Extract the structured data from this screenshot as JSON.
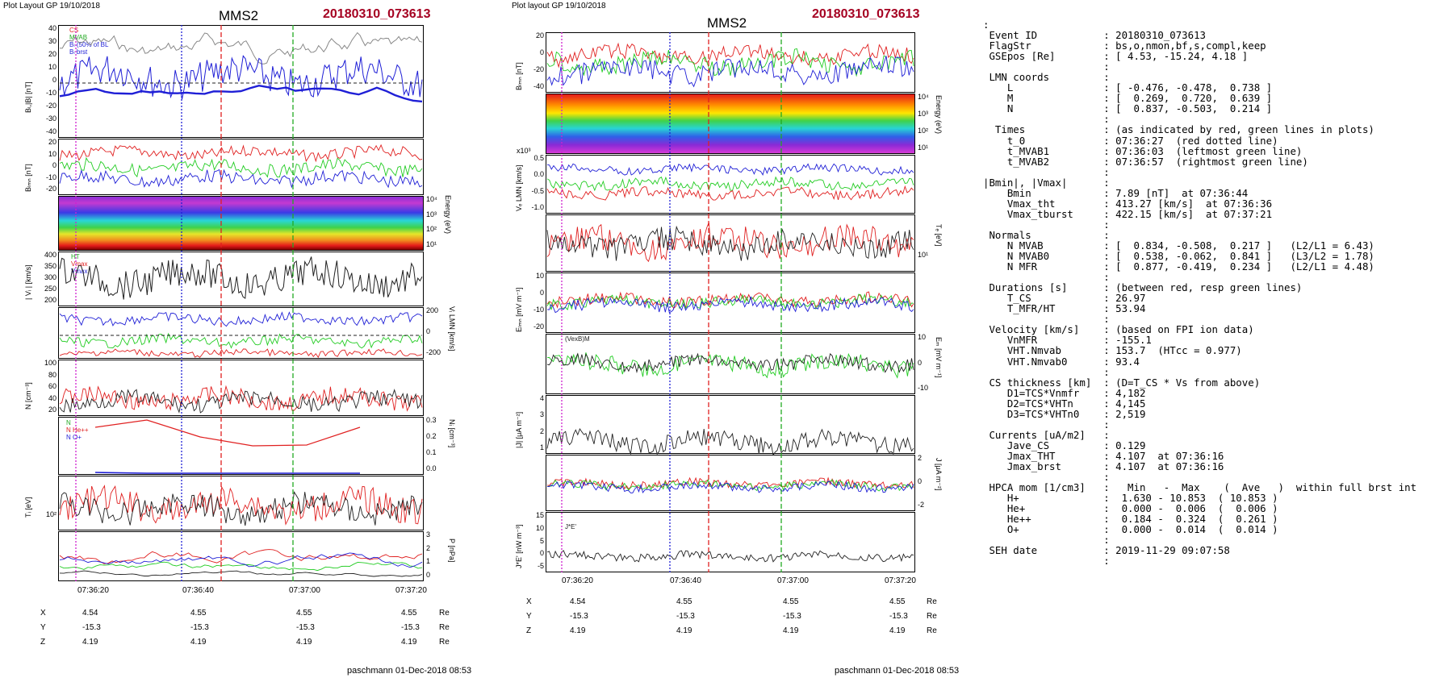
{
  "left": {
    "header": "Plot Layout GP 19/10/2018",
    "spacecraft": "MMS2",
    "event": "20180310_073613",
    "ylabels": [
      "Bₗ,|B| [nT]",
      "Bₗₘₙ [nT]",
      "Energy (eV)",
      "| Vᵢ | [km/s]",
      "Vᵢ LMN [km/s]",
      "N [cm⁻³]",
      "Nᵢ [cm⁻³]",
      "Tᵢ [eV]",
      "P [nPa]"
    ],
    "ticks": {
      "p1": [
        "40",
        "30",
        "20",
        "10",
        "0",
        "-10",
        "-20",
        "-30",
        "-40"
      ],
      "p2": [
        "20",
        "10",
        "0",
        "-10",
        "-20"
      ],
      "p3": [
        "10⁴",
        "10³",
        "10²",
        "10¹"
      ],
      "p4": [
        "400",
        "350",
        "300",
        "250",
        "200"
      ],
      "p5": [
        "200",
        "0",
        "-200"
      ],
      "p6": [
        "100",
        "80",
        "60",
        "40",
        "20"
      ],
      "p7": [
        "0.3",
        "0.2",
        "0.1",
        "0.0"
      ],
      "p8": [
        "10²"
      ],
      "p9": [
        "3",
        "2",
        "1",
        "0"
      ]
    },
    "legends": {
      "p1": [
        "CS",
        "MVAB",
        "Bₗ (50% of BL",
        "Bₗ brst"
      ],
      "p4": [
        "HT",
        "Vmax",
        "Vmax"
      ],
      "p7": [
        "N",
        "N He++",
        "N O+"
      ]
    },
    "xticks": [
      "07:36:20",
      "07:36:40",
      "07:37:00",
      "07:37:20"
    ],
    "xyz": [
      {
        "label": "X",
        "values": [
          "4.54",
          "4.55",
          "4.55",
          "4.55"
        ],
        "unit": "Re"
      },
      {
        "label": "Y",
        "values": [
          "-15.3",
          "-15.3",
          "-15.3",
          "-15.3"
        ],
        "unit": "Re"
      },
      {
        "label": "Z",
        "values": [
          "4.19",
          "4.19",
          "4.19",
          "4.19"
        ],
        "unit": "Re"
      }
    ],
    "footer": "paschmann 01-Dec-2018 08:53"
  },
  "middle": {
    "header": "Plot layout GP 19/10/2018",
    "spacecraft": "MMS2",
    "event": "20180310_073613",
    "ylabels": [
      "Bₗₘₙ [nT]",
      "Energy (eV)",
      "Vₑ LMN [km/s]",
      "Tₑ [eV]",
      "Eₗₘₙ [mV m⁻¹]",
      "Eₘ [mV m⁻¹]",
      "|J| [μA m⁻²]",
      "J [μA m⁻²]",
      "J*E' [nW m⁻³]"
    ],
    "ticks": {
      "p1": [
        "20",
        "0",
        "-20",
        "-40"
      ],
      "p2": [
        "10⁴",
        "10³",
        "10²",
        "10¹"
      ],
      "p3": [
        "0.5",
        "0.0",
        "-0.5",
        "-1.0"
      ],
      "p4": [
        "10¹"
      ],
      "p5": [
        "10",
        "0",
        "-10",
        "-20"
      ],
      "p6": [
        "10",
        "0",
        "-10"
      ],
      "p7": [
        "4",
        "3",
        "2",
        "1"
      ],
      "p8": [
        "2",
        "0",
        "-2"
      ],
      "p9": [
        "15",
        "10",
        "5",
        "0",
        "-5"
      ]
    },
    "legends": {
      "p6": [
        "(VexB)M"
      ],
      "p9": [
        "J*E'"
      ]
    },
    "scale_note": "x10³",
    "xticks": [
      "07:36:20",
      "07:36:40",
      "07:37:00",
      "07:37:20"
    ],
    "xyz": [
      {
        "label": "X",
        "values": [
          "4.54",
          "4.55",
          "4.55",
          "4.55"
        ],
        "unit": "Re"
      },
      {
        "label": "Y",
        "values": [
          "-15.3",
          "-15.3",
          "-15.3",
          "-15.3"
        ],
        "unit": "Re"
      },
      {
        "label": "Z",
        "values": [
          "4.19",
          "4.19",
          "4.19",
          "4.19"
        ],
        "unit": "Re"
      }
    ],
    "footer": "paschmann 01-Dec-2018 08:53"
  },
  "table_lines": [
    ":",
    " Event ID           : 20180310_073613",
    " FlagStr            : bs,o,nmon,bf,s,compl,keep",
    " GSEpos [Re]        : [ 4.53, -15.24, 4.18 ]",
    "                    :",
    " LMN coords         :",
    "    L               : [ -0.476, -0.478,  0.738 ]",
    "    M               : [  0.269,  0.720,  0.639 ]",
    "    N               : [  0.837, -0.503,  0.214 ]",
    "                    :",
    "  Times             : (as indicated by red, green lines in plots)",
    "    t_0             : 07:36:27  (red dotted line)",
    "    t_MVAB1         : 07:36:03  (leftmost green line)",
    "    t_MVAB2         : 07:36:57  (rightmost green line)",
    "                    :",
    "|Bmin|, |Vmax|      :",
    "    Bmin            : 7.89 [nT]  at 07:36:44",
    "    Vmax_tht        : 413.27 [km/s]  at 07:36:36",
    "    Vmax_tburst     : 422.15 [km/s]  at 07:37:21",
    "                    :",
    " Normals            :",
    "    N MVAB          : [  0.834, -0.508,  0.217 ]   (L2/L1 = 6.43)",
    "    N MVAB0         : [  0.538, -0.062,  0.841 ]   (L3/L2 = 1.78)",
    "    N MFR           : [  0.877, -0.419,  0.234 ]   (L2/L1 = 4.48)",
    "                    :",
    " Durations [s]      : (between red, resp green lines)",
    "    T_CS            : 26.97",
    "    T_MFR/HT        : 53.94",
    "                    :",
    " Velocity [km/s]    : (based on FPI ion data)",
    "    VnMFR           : -155.1",
    "    VHT.Nmvab       : 153.7  (HTcc = 0.977)",
    "    VHT.Nmvab0      : 93.4",
    "                    :",
    " CS thickness [km]  : (D=T_CS * Vs from above)",
    "    D1=TCS*Vnmfr    : 4,182",
    "    D2=TCS*VHTn     : 4,145",
    "    D3=TCS*VHTn0    : 2,519",
    "                    :",
    " Currents [uA/m2]   :",
    "    Jave_CS         : 0.129",
    "    Jmax_THT        : 4.107  at 07:36:16",
    "    Jmax_brst       : 4.107  at 07:36:16",
    "                    :",
    " HPCA mom [1/cm3]   :   Min   -  Max    (  Ave   )  within full brst int",
    "    H+              :  1.630 - 10.853  ( 10.853 )",
    "    He+             :  0.000 -  0.006  (  0.006 )",
    "    He++            :  0.184 -  0.324  (  0.261 )",
    "    O+              :  0.000 -  0.014  (  0.014 )",
    "                    :",
    " SEH date           : 2019-11-29 09:07:58",
    "                    :"
  ],
  "chart_data": [
    {
      "type": "line",
      "title": "MMS2 20180310_073613",
      "xlabel": "",
      "x_ticks": [
        "07:36:20",
        "07:36:40",
        "07:37:00",
        "07:37:20"
      ],
      "x_range": [
        "07:36:10",
        "07:37:20"
      ],
      "panels": [
        {
          "ylabel": "BL,|B| [nT]",
          "ylim": [
            -40,
            40
          ],
          "series": [
            {
              "name": "BL brst",
              "color": "#1f1fd6"
            },
            {
              "name": "CS",
              "color": "#777777"
            }
          ]
        },
        {
          "ylabel": "BLMN [nT]",
          "ylim": [
            -20,
            20
          ],
          "series": [
            {
              "color": "#e02020"
            },
            {
              "color": "#22cc22"
            },
            {
              "color": "#1f1fd6"
            }
          ]
        },
        {
          "ylabel": "Energy (eV)",
          "type": "heatmap",
          "ylim": [
            "10¹",
            "10⁴"
          ]
        },
        {
          "ylabel": "| Vi | [km/s]",
          "ylim": [
            200,
            400
          ],
          "series": [
            {
              "color": "#222222"
            }
          ]
        },
        {
          "ylabel": "Vi LMN [km/s]",
          "ylim": [
            -200,
            200
          ],
          "series": [
            {
              "color": "#1f1fd6"
            },
            {
              "color": "#22cc22"
            },
            {
              "color": "#e02020"
            }
          ]
        },
        {
          "ylabel": "N [cm-3]",
          "ylim": [
            0,
            100
          ],
          "series": [
            {
              "color": "#e02020"
            },
            {
              "color": "#222222"
            }
          ]
        },
        {
          "ylabel": "Ni [cm-3]",
          "ylim": [
            0,
            0.3
          ],
          "series": [
            {
              "name": "N He++",
              "color": "#e02020",
              "x": [
                "07:36:13",
                "07:36:27",
                "07:36:36",
                "07:36:46",
                "07:36:56",
                "07:37:06"
              ],
              "values": [
                0.25,
                0.32,
                0.25,
                0.2,
                0.2,
                0.3
              ]
            },
            {
              "name": "N O+",
              "color": "#1f1fd6",
              "x": [
                "07:36:13",
                "07:36:27",
                "07:36:36",
                "07:36:46",
                "07:36:56",
                "07:37:06"
              ],
              "values": [
                0.01,
                0.01,
                0.01,
                0.01,
                0.01,
                0.01
              ]
            }
          ]
        },
        {
          "ylabel": "Ti [eV]",
          "series": [
            {
              "color": "#e02020"
            },
            {
              "color": "#222222"
            }
          ]
        },
        {
          "ylabel": "P [nPa]",
          "ylim": [
            0,
            3
          ],
          "series": [
            {
              "color": "#e02020"
            },
            {
              "color": "#22cc22"
            },
            {
              "color": "#1f1fd6"
            },
            {
              "color": "#222222"
            }
          ]
        }
      ],
      "markers": [
        {
          "label": "t_0",
          "time": "07:36:27",
          "color": "#e02020",
          "style": "dotted"
        },
        {
          "label": "t_MVAB1",
          "time": "07:36:03",
          "color": "#22aa22",
          "style": "dashed"
        },
        {
          "label": "t_MVAB2",
          "time": "07:36:57",
          "color": "#22aa22",
          "style": "dashed"
        }
      ]
    },
    {
      "type": "line",
      "title": "MMS2 20180310_073613",
      "xlabel": "",
      "x_ticks": [
        "07:36:20",
        "07:36:40",
        "07:37:00",
        "07:37:20"
      ],
      "x_range": [
        "07:36:12",
        "07:37:20"
      ],
      "panels": [
        {
          "ylabel": "BLMN [nT]",
          "ylim": [
            -40,
            20
          ]
        },
        {
          "ylabel": "Energy (eV)",
          "type": "heatmap",
          "ylim": [
            "10¹",
            "10⁴"
          ]
        },
        {
          "ylabel": "Ve LMN [km/s]",
          "ylim": [
            -1.0,
            0.5
          ],
          "scale": "x10³"
        },
        {
          "ylabel": "Te [eV]"
        },
        {
          "ylabel": "ELMN [mV m-1]",
          "ylim": [
            -20,
            10
          ]
        },
        {
          "ylabel": "EM [mV m-1]",
          "ylim": [
            -10,
            10
          ]
        },
        {
          "ylabel": "|J| [μA m-2]",
          "ylim": [
            0,
            4
          ]
        },
        {
          "ylabel": "J [μA m-2]",
          "ylim": [
            -2,
            2
          ]
        },
        {
          "ylabel": "J*E' [nW m-3]",
          "ylim": [
            -5,
            15
          ]
        }
      ]
    }
  ]
}
